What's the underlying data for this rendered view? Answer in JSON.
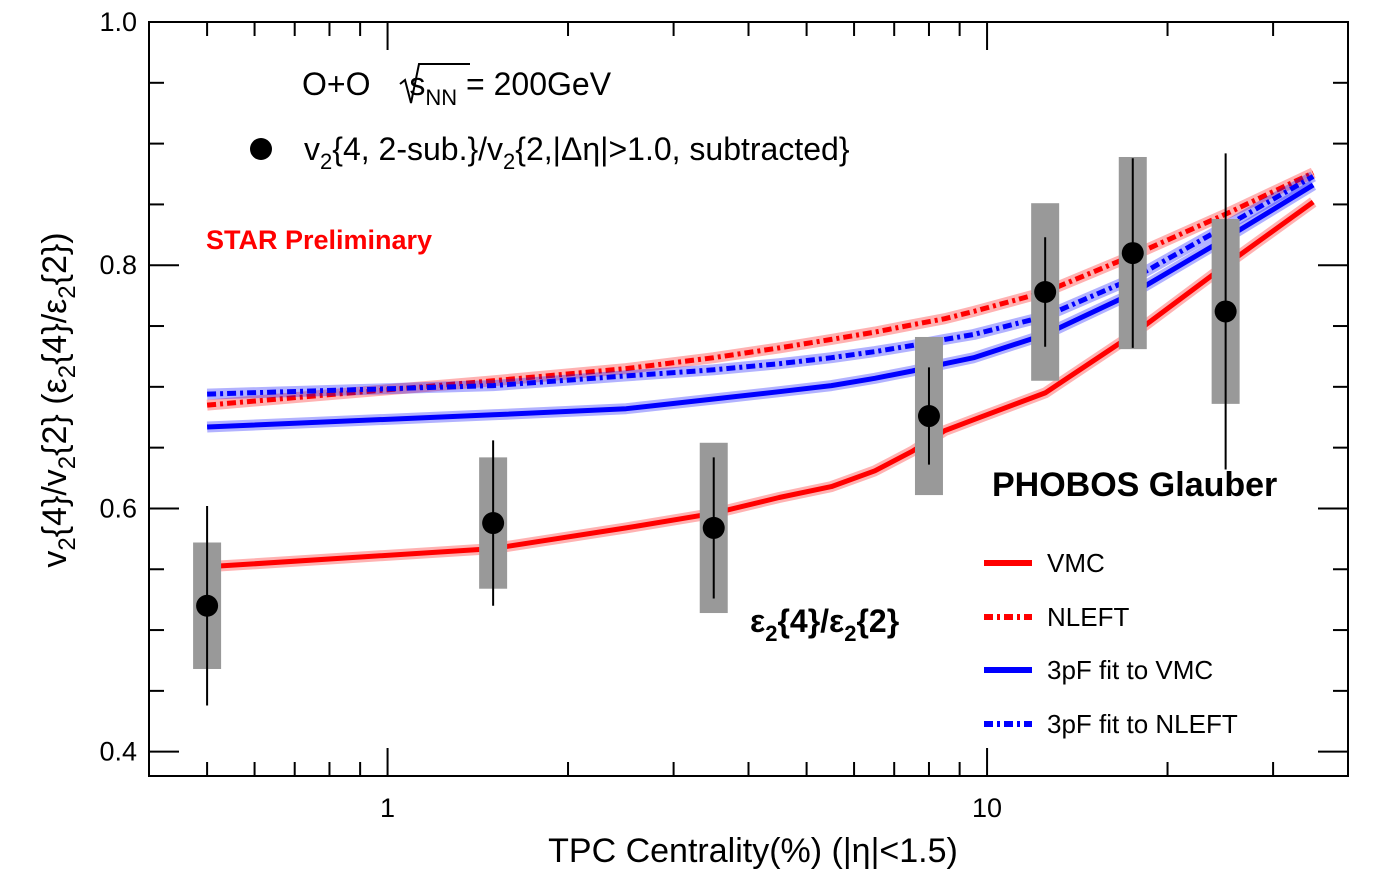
{
  "chart_data": {
    "type": "line",
    "title": "",
    "xlabel": "TPC Centrality(%) (|η|<1.5)",
    "ylabel_parts": [
      "v",
      "2",
      "{4}/v",
      "2",
      "{2} (ε",
      "2",
      "{4}/ε",
      "2",
      "{2})"
    ],
    "xscale": "log",
    "xlim": [
      0.4,
      40
    ],
    "ylim": [
      0.38,
      1.0
    ],
    "x_ticks": [
      {
        "value": 1,
        "label": "1"
      },
      {
        "value": 10,
        "label": "10"
      }
    ],
    "y_ticks": [
      {
        "value": 0.4,
        "label": "0.4"
      },
      {
        "value": 0.6,
        "label": "0.6"
      },
      {
        "value": 0.8,
        "label": "0.8"
      },
      {
        "value": 1.0,
        "label": "1.0"
      }
    ],
    "annotations": {
      "system_pre": "O+O ",
      "system_sqrt_s": "s",
      "system_sub": "NN",
      "system_post": " = 200GeV",
      "data_legend_parts": [
        "v",
        "2",
        "{4, 2-sub.}/v",
        "2",
        "{2,|Δη|>1.0, subtracted}"
      ],
      "star_label": "STAR Preliminary",
      "star_color": "#ff0000",
      "model_label": "PHOBOS Glauber",
      "ratio_parts": [
        "ε",
        "2",
        "{4}/ε",
        "2",
        "{2}"
      ]
    },
    "data_points": {
      "name": "v2{4, 2-sub.}/v2{2,|Δη|>1.0, subtracted}",
      "color": "#000000",
      "syst_color": "#999999",
      "points": [
        {
          "x": 0.5,
          "y": 0.52,
          "stat": 0.082,
          "sys": 0.052
        },
        {
          "x": 1.5,
          "y": 0.588,
          "stat": 0.068,
          "sys": 0.054
        },
        {
          "x": 3.5,
          "y": 0.584,
          "stat": 0.058,
          "sys": 0.07
        },
        {
          "x": 8,
          "y": 0.676,
          "stat": 0.04,
          "sys": 0.065
        },
        {
          "x": 12.5,
          "y": 0.778,
          "stat": 0.045,
          "sys": 0.073
        },
        {
          "x": 17.5,
          "y": 0.81,
          "stat": 0.078,
          "sys": 0.079
        },
        {
          "x": 25,
          "y": 0.762,
          "stat": 0.13,
          "sys": 0.076
        }
      ]
    },
    "series": [
      {
        "name": "VMC",
        "color": "#ff0000",
        "style": "solid",
        "x": [
          0.5,
          1.5,
          2.5,
          3.5,
          4.5,
          5.5,
          6.5,
          7.5,
          8.5,
          9.5,
          12.5,
          17.5,
          25,
          35
        ],
        "y": [
          0.552,
          0.567,
          0.584,
          0.596,
          0.609,
          0.618,
          0.631,
          0.647,
          0.664,
          0.673,
          0.695,
          0.743,
          0.8,
          0.852
        ]
      },
      {
        "name": "NLEFT",
        "color": "#ff0000",
        "style": "dashdot",
        "x": [
          0.5,
          1.5,
          2.5,
          3.5,
          4.5,
          5.5,
          6.5,
          7.5,
          8.5,
          9.5,
          12.5,
          17.5,
          25,
          35
        ],
        "y": [
          0.685,
          0.705,
          0.715,
          0.724,
          0.732,
          0.739,
          0.745,
          0.751,
          0.756,
          0.762,
          0.778,
          0.808,
          0.842,
          0.876
        ]
      },
      {
        "name": "3pF fit to VMC",
        "color": "#0000ff",
        "style": "solid",
        "x": [
          0.5,
          1.5,
          2.5,
          3.5,
          4.5,
          5.5,
          6.5,
          7.5,
          8.5,
          9.5,
          12.5,
          17.5,
          25,
          35
        ],
        "y": [
          0.667,
          0.677,
          0.682,
          0.69,
          0.696,
          0.701,
          0.707,
          0.713,
          0.719,
          0.724,
          0.743,
          0.777,
          0.822,
          0.866
        ]
      },
      {
        "name": "3pF fit to NLEFT",
        "color": "#0000ff",
        "style": "dashdot",
        "x": [
          0.5,
          1.5,
          2.5,
          3.5,
          4.5,
          5.5,
          6.5,
          7.5,
          8.5,
          9.5,
          12.5,
          17.5,
          25,
          35
        ],
        "y": [
          0.694,
          0.701,
          0.709,
          0.714,
          0.719,
          0.724,
          0.729,
          0.734,
          0.739,
          0.743,
          0.758,
          0.789,
          0.832,
          0.873
        ]
      }
    ]
  }
}
